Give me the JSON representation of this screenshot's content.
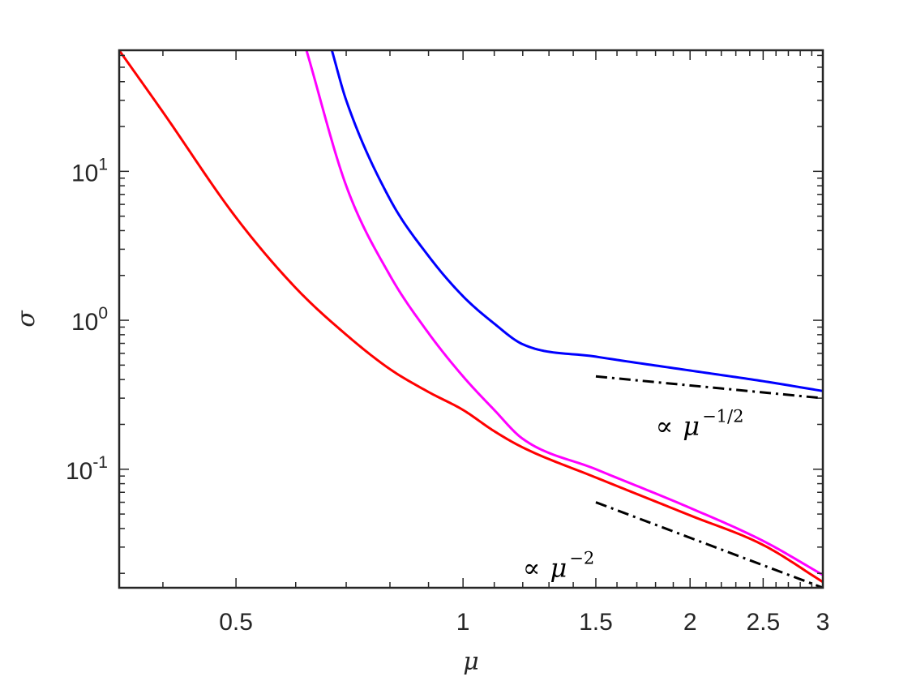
{
  "chart_data": {
    "type": "line",
    "xlabel": "μ",
    "ylabel": "σ",
    "xscale": "log",
    "yscale": "log",
    "xlim": [
      0.35,
      3
    ],
    "ylim": [
      0.016,
      65
    ],
    "grid": false,
    "legend": "none",
    "x_ticks": [
      {
        "value": 0.5,
        "label": "0.5"
      },
      {
        "value": 1,
        "label": "1"
      },
      {
        "value": 1.5,
        "label": "1.5"
      },
      {
        "value": 2,
        "label": "2"
      },
      {
        "value": 2.5,
        "label": "2.5"
      },
      {
        "value": 3,
        "label": "3"
      }
    ],
    "y_ticks": [
      {
        "value": 0.1,
        "base": "10",
        "exp": "-1"
      },
      {
        "value": 1,
        "base": "10",
        "exp": "0"
      },
      {
        "value": 10,
        "base": "10",
        "exp": "1"
      }
    ],
    "series": [
      {
        "color": "#ff0000",
        "style": "solid",
        "x": [
          0.35,
          0.4,
          0.5,
          0.6,
          0.7,
          0.8,
          0.9,
          1.0,
          1.1,
          1.2,
          1.5,
          2.0,
          2.5,
          3.0
        ],
        "y": [
          65,
          25,
          4.9,
          1.65,
          0.8,
          0.47,
          0.33,
          0.25,
          0.18,
          0.14,
          0.088,
          0.049,
          0.031,
          0.0175
        ]
      },
      {
        "color": "#ff00ff",
        "style": "solid",
        "x": [
          0.62,
          0.7,
          0.8,
          0.9,
          1.0,
          1.1,
          1.2,
          1.5,
          2.0,
          2.5,
          3.0
        ],
        "y": [
          65,
          8.0,
          2.0,
          0.82,
          0.42,
          0.25,
          0.16,
          0.1,
          0.055,
          0.033,
          0.0195
        ]
      },
      {
        "color": "#0000ff",
        "style": "solid",
        "x": [
          0.67,
          0.7,
          0.8,
          0.9,
          1.0,
          1.1,
          1.2,
          1.5,
          2.0,
          2.5,
          3.0
        ],
        "y": [
          65,
          30,
          6.5,
          2.7,
          1.45,
          0.95,
          0.69,
          0.57,
          0.46,
          0.39,
          0.335
        ]
      },
      {
        "color": "#000000",
        "style": "dashdot",
        "x": [
          1.5,
          3.0
        ],
        "y": [
          0.42,
          0.3
        ]
      },
      {
        "color": "#000000",
        "style": "dashdot",
        "x": [
          1.5,
          3.0
        ],
        "y": [
          0.06,
          0.016
        ]
      }
    ],
    "annotations": [
      {
        "prefix": "∝",
        "var": "μ",
        "exp": "−1/2",
        "x": 1.8,
        "y": 0.17
      },
      {
        "prefix": "∝",
        "var": "μ",
        "exp": "−2",
        "x": 1.2,
        "y": 0.019
      }
    ]
  }
}
